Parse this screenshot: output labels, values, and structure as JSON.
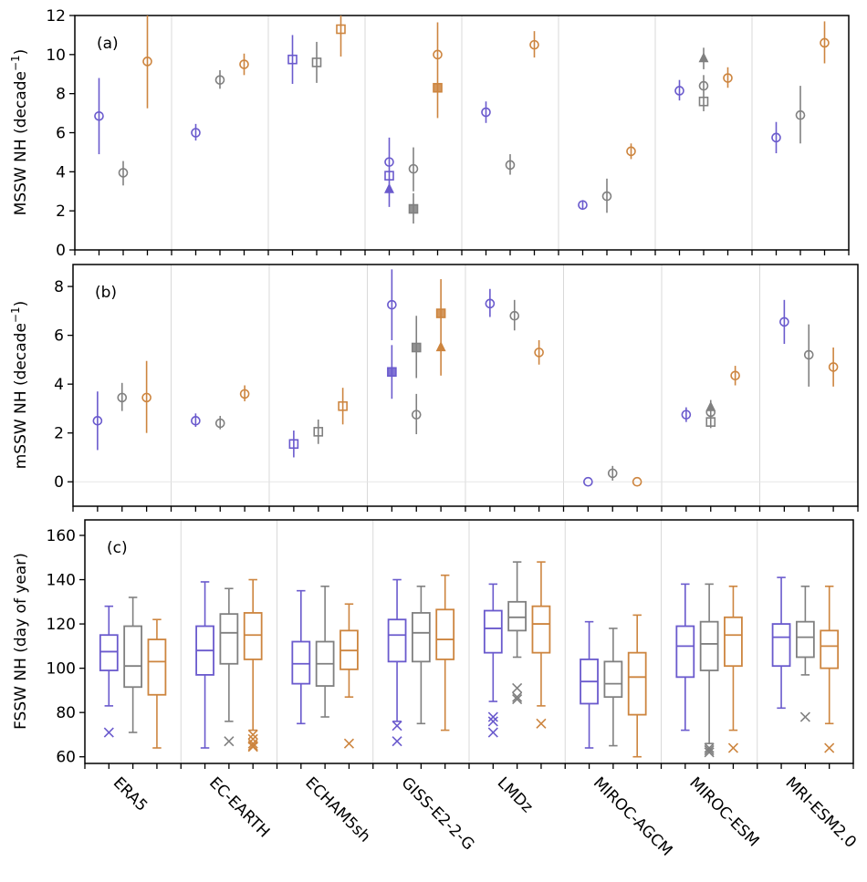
{
  "colors": {
    "series_1": "#6a5acd",
    "series_2": "#808080",
    "series_3": "#cd853f",
    "grid": "#d9d9d9",
    "axis": "#000000"
  },
  "chart_data": [
    {
      "id": "a",
      "type": "scatter",
      "panel_label": "(a)",
      "ylabel": "MSSW NH (decade",
      "ylabel_sup": "−1",
      "ylabel_close": ")",
      "ylim": [
        0,
        12
      ],
      "yticks": [
        0,
        2,
        4,
        6,
        8,
        10,
        12
      ],
      "categories": [
        "ERA5",
        "EC-EARTH",
        "ECHAM5sh",
        "GISS-E2-2-G",
        "LMDz",
        "MIROC-AGCM",
        "MIROC-ESM",
        "MRI-ESM2.0"
      ],
      "grid": "vertical group separators",
      "points": [
        {
          "group": 0,
          "series": 0,
          "marker": "circle",
          "y": 6.85,
          "lo": 4.9,
          "hi": 8.8
        },
        {
          "group": 0,
          "series": 1,
          "marker": "circle",
          "y": 3.95,
          "lo": 3.3,
          "hi": 4.55
        },
        {
          "group": 0,
          "series": 2,
          "marker": "circle",
          "y": 9.65,
          "lo": 7.25,
          "hi": 12.0
        },
        {
          "group": 1,
          "series": 0,
          "marker": "circle",
          "y": 6.0,
          "lo": 5.6,
          "hi": 6.45
        },
        {
          "group": 1,
          "series": 1,
          "marker": "circle",
          "y": 8.7,
          "lo": 8.25,
          "hi": 9.2
        },
        {
          "group": 1,
          "series": 2,
          "marker": "circle",
          "y": 9.5,
          "lo": 8.95,
          "hi": 10.05
        },
        {
          "group": 2,
          "series": 0,
          "marker": "square",
          "y": 9.75,
          "lo": 8.5,
          "hi": 11.0
        },
        {
          "group": 2,
          "series": 1,
          "marker": "square",
          "y": 9.6,
          "lo": 8.55,
          "hi": 10.65
        },
        {
          "group": 2,
          "series": 2,
          "marker": "square",
          "y": 11.3,
          "lo": 9.9,
          "hi": 12.0
        },
        {
          "group": 3,
          "series": 0,
          "marker": "circle",
          "y": 4.5,
          "lo": 2.2,
          "hi": 5.75
        },
        {
          "group": 3,
          "series": 0,
          "marker": "square",
          "y": 3.8,
          "lo": null,
          "hi": null
        },
        {
          "group": 3,
          "series": 0,
          "marker": "triangle",
          "y": 3.1,
          "lo": null,
          "hi": null
        },
        {
          "group": 3,
          "series": 1,
          "marker": "circle",
          "y": 4.15,
          "lo": 3.0,
          "hi": 5.25
        },
        {
          "group": 3,
          "series": 1,
          "marker": "square-filled",
          "y": 2.1,
          "lo": 1.35,
          "hi": 2.9
        },
        {
          "group": 3,
          "series": 2,
          "marker": "circle",
          "y": 10.0,
          "lo": 6.75,
          "hi": 11.65
        },
        {
          "group": 3,
          "series": 2,
          "marker": "square-filled",
          "y": 8.3,
          "lo": null,
          "hi": null
        },
        {
          "group": 4,
          "series": 0,
          "marker": "circle",
          "y": 7.05,
          "lo": 6.5,
          "hi": 7.6
        },
        {
          "group": 4,
          "series": 1,
          "marker": "circle",
          "y": 4.35,
          "lo": 3.85,
          "hi": 4.9
        },
        {
          "group": 4,
          "series": 2,
          "marker": "circle",
          "y": 10.5,
          "lo": 9.85,
          "hi": 11.2
        },
        {
          "group": 5,
          "series": 0,
          "marker": "circle",
          "y": 2.3,
          "lo": 2.05,
          "hi": 2.55
        },
        {
          "group": 5,
          "series": 1,
          "marker": "circle",
          "y": 2.75,
          "lo": 1.9,
          "hi": 3.65
        },
        {
          "group": 5,
          "series": 2,
          "marker": "circle",
          "y": 5.05,
          "lo": 4.65,
          "hi": 5.45
        },
        {
          "group": 6,
          "series": 0,
          "marker": "circle",
          "y": 8.15,
          "lo": 7.65,
          "hi": 8.7
        },
        {
          "group": 6,
          "series": 1,
          "marker": "triangle-filled",
          "y": 9.8,
          "lo": 9.25,
          "hi": 10.35
        },
        {
          "group": 6,
          "series": 1,
          "marker": "circle",
          "y": 8.4,
          "lo": 7.1,
          "hi": 8.95
        },
        {
          "group": 6,
          "series": 1,
          "marker": "square",
          "y": 7.6,
          "lo": null,
          "hi": null
        },
        {
          "group": 6,
          "series": 2,
          "marker": "circle",
          "y": 8.8,
          "lo": 8.3,
          "hi": 9.35
        },
        {
          "group": 7,
          "series": 0,
          "marker": "circle",
          "y": 5.75,
          "lo": 4.95,
          "hi": 6.55
        },
        {
          "group": 7,
          "series": 1,
          "marker": "circle",
          "y": 6.9,
          "lo": 5.45,
          "hi": 8.4
        },
        {
          "group": 7,
          "series": 2,
          "marker": "circle",
          "y": 10.6,
          "lo": 9.55,
          "hi": 11.7
        }
      ]
    },
    {
      "id": "b",
      "type": "scatter",
      "panel_label": "(b)",
      "ylabel": "mSSW NH (decade",
      "ylabel_sup": "−1",
      "ylabel_close": ")",
      "ylim": [
        -1,
        8.9
      ],
      "yticks": [
        0,
        2,
        4,
        6,
        8
      ],
      "categories": [
        "ERA5",
        "EC-EARTH",
        "ECHAM5sh",
        "GISS-E2-2-G",
        "LMDz",
        "MIROC-AGCM",
        "MIROC-ESM",
        "MRI-ESM2.0"
      ],
      "grid": "vertical group separators and horizontal line at 0",
      "points": [
        {
          "group": 0,
          "series": 0,
          "marker": "circle",
          "y": 2.5,
          "lo": 1.3,
          "hi": 3.7
        },
        {
          "group": 0,
          "series": 1,
          "marker": "circle",
          "y": 3.45,
          "lo": 2.9,
          "hi": 4.05
        },
        {
          "group": 0,
          "series": 2,
          "marker": "circle",
          "y": 3.45,
          "lo": 2.0,
          "hi": 4.95
        },
        {
          "group": 1,
          "series": 0,
          "marker": "circle",
          "y": 2.5,
          "lo": 2.25,
          "hi": 2.8
        },
        {
          "group": 1,
          "series": 1,
          "marker": "circle",
          "y": 2.4,
          "lo": 2.15,
          "hi": 2.7
        },
        {
          "group": 1,
          "series": 2,
          "marker": "circle",
          "y": 3.6,
          "lo": 3.3,
          "hi": 3.95
        },
        {
          "group": 2,
          "series": 0,
          "marker": "square",
          "y": 1.55,
          "lo": 1.0,
          "hi": 2.1
        },
        {
          "group": 2,
          "series": 1,
          "marker": "square",
          "y": 2.05,
          "lo": 1.55,
          "hi": 2.55
        },
        {
          "group": 2,
          "series": 2,
          "marker": "square",
          "y": 3.1,
          "lo": 2.35,
          "hi": 3.85
        },
        {
          "group": 3,
          "series": 0,
          "marker": "circle",
          "y": 7.25,
          "lo": 5.8,
          "hi": 8.7
        },
        {
          "group": 3,
          "series": 0,
          "marker": "square-filled",
          "y": 4.5,
          "lo": 3.4,
          "hi": 5.6
        },
        {
          "group": 3,
          "series": 1,
          "marker": "square-filled",
          "y": 5.5,
          "lo": 4.25,
          "hi": 6.8
        },
        {
          "group": 3,
          "series": 1,
          "marker": "circle",
          "y": 2.75,
          "lo": 1.95,
          "hi": 3.6
        },
        {
          "group": 3,
          "series": 2,
          "marker": "square-filled",
          "y": 6.9,
          "lo": 4.35,
          "hi": 8.3
        },
        {
          "group": 3,
          "series": 2,
          "marker": "triangle-filled",
          "y": 5.5,
          "lo": null,
          "hi": null
        },
        {
          "group": 4,
          "series": 0,
          "marker": "circle",
          "y": 7.3,
          "lo": 6.75,
          "hi": 7.9
        },
        {
          "group": 4,
          "series": 1,
          "marker": "circle",
          "y": 6.8,
          "lo": 6.2,
          "hi": 7.45
        },
        {
          "group": 4,
          "series": 2,
          "marker": "circle",
          "y": 5.3,
          "lo": 4.8,
          "hi": 5.8
        },
        {
          "group": 5,
          "series": 0,
          "marker": "circle",
          "y": 0.0,
          "lo": null,
          "hi": null
        },
        {
          "group": 5,
          "series": 1,
          "marker": "circle",
          "y": 0.35,
          "lo": 0.05,
          "hi": 0.65
        },
        {
          "group": 5,
          "series": 2,
          "marker": "circle",
          "y": 0.0,
          "lo": null,
          "hi": null
        },
        {
          "group": 6,
          "series": 0,
          "marker": "circle",
          "y": 2.75,
          "lo": 2.45,
          "hi": 3.05
        },
        {
          "group": 6,
          "series": 1,
          "marker": "triangle-filled",
          "y": 3.05,
          "lo": null,
          "hi": null
        },
        {
          "group": 6,
          "series": 1,
          "marker": "circle",
          "y": 2.85,
          "lo": 2.2,
          "hi": 3.35
        },
        {
          "group": 6,
          "series": 1,
          "marker": "square",
          "y": 2.45,
          "lo": null,
          "hi": null
        },
        {
          "group": 6,
          "series": 2,
          "marker": "circle",
          "y": 4.35,
          "lo": 3.95,
          "hi": 4.75
        },
        {
          "group": 7,
          "series": 0,
          "marker": "circle",
          "y": 6.55,
          "lo": 5.65,
          "hi": 7.45
        },
        {
          "group": 7,
          "series": 1,
          "marker": "circle",
          "y": 5.2,
          "lo": 3.9,
          "hi": 6.45
        },
        {
          "group": 7,
          "series": 2,
          "marker": "circle",
          "y": 4.7,
          "lo": 3.9,
          "hi": 5.5
        }
      ]
    },
    {
      "id": "c",
      "type": "box",
      "panel_label": "(c)",
      "ylabel": "FSSW NH (day of year)",
      "ylim": [
        57,
        167
      ],
      "yticks": [
        60,
        80,
        100,
        120,
        140,
        160
      ],
      "categories": [
        "ERA5",
        "EC-EARTH",
        "ECHAM5sh",
        "GISS-E2-2-G",
        "LMDz",
        "MIROC-AGCM",
        "MIROC-ESM",
        "MRI-ESM2.0"
      ],
      "grid": "vertical group separators",
      "boxes": [
        {
          "group": 0,
          "series": 0,
          "wlo": 83,
          "q1": 99,
          "med": 107.5,
          "q3": 115,
          "whi": 128,
          "outliers": [
            71
          ]
        },
        {
          "group": 0,
          "series": 1,
          "wlo": 71,
          "q1": 91.5,
          "med": 101,
          "q3": 119,
          "whi": 132,
          "outliers": []
        },
        {
          "group": 0,
          "series": 2,
          "wlo": 64,
          "q1": 88,
          "med": 103,
          "q3": 113,
          "whi": 122,
          "outliers": []
        },
        {
          "group": 1,
          "series": 0,
          "wlo": 64,
          "q1": 97,
          "med": 108,
          "q3": 119,
          "whi": 139,
          "outliers": []
        },
        {
          "group": 1,
          "series": 1,
          "wlo": 76,
          "q1": 102,
          "med": 116,
          "q3": 124.5,
          "whi": 136,
          "outliers": [
            67
          ]
        },
        {
          "group": 1,
          "series": 2,
          "wlo": 72,
          "q1": 104,
          "med": 115,
          "q3": 125,
          "whi": 140,
          "outliers": [
            70,
            68,
            66,
            65,
            64.5
          ]
        },
        {
          "group": 2,
          "series": 0,
          "wlo": 75,
          "q1": 93,
          "med": 102,
          "q3": 112,
          "whi": 135,
          "outliers": []
        },
        {
          "group": 2,
          "series": 1,
          "wlo": 78,
          "q1": 92,
          "med": 102,
          "q3": 112,
          "whi": 137,
          "outliers": []
        },
        {
          "group": 2,
          "series": 2,
          "wlo": 87,
          "q1": 99.5,
          "med": 108,
          "q3": 117,
          "whi": 129,
          "outliers": [
            66
          ]
        },
        {
          "group": 3,
          "series": 0,
          "wlo": 76,
          "q1": 103,
          "med": 115,
          "q3": 122,
          "whi": 140,
          "outliers": [
            74,
            67
          ]
        },
        {
          "group": 3,
          "series": 1,
          "wlo": 75,
          "q1": 103,
          "med": 116,
          "q3": 125,
          "whi": 137,
          "outliers": []
        },
        {
          "group": 3,
          "series": 2,
          "wlo": 72,
          "q1": 104,
          "med": 113,
          "q3": 126.5,
          "whi": 142,
          "outliers": []
        },
        {
          "group": 4,
          "series": 0,
          "wlo": 85,
          "q1": 107,
          "med": 118,
          "q3": 126,
          "whi": 138,
          "outliers": [
            78,
            76,
            71
          ]
        },
        {
          "group": 4,
          "series": 1,
          "wlo": 105,
          "q1": 117,
          "med": 123,
          "q3": 130,
          "whi": 148,
          "outliers": [
            91,
            87,
            86
          ]
        },
        {
          "group": 4,
          "series": 2,
          "wlo": 83,
          "q1": 107,
          "med": 120,
          "q3": 128,
          "whi": 148,
          "outliers": [
            75
          ]
        },
        {
          "group": 5,
          "series": 0,
          "wlo": 64,
          "q1": 84,
          "med": 94,
          "q3": 104,
          "whi": 121,
          "outliers": []
        },
        {
          "group": 5,
          "series": 1,
          "wlo": 65,
          "q1": 87,
          "med": 93,
          "q3": 103,
          "whi": 118,
          "outliers": []
        },
        {
          "group": 5,
          "series": 2,
          "wlo": 60,
          "q1": 79,
          "med": 96,
          "q3": 107,
          "whi": 124,
          "outliers": []
        },
        {
          "group": 6,
          "series": 0,
          "wlo": 72,
          "q1": 96,
          "med": 110,
          "q3": 119,
          "whi": 138,
          "outliers": []
        },
        {
          "group": 6,
          "series": 1,
          "wlo": 66,
          "q1": 99,
          "med": 111,
          "q3": 121,
          "whi": 138,
          "outliers": [
            64,
            63,
            62
          ]
        },
        {
          "group": 6,
          "series": 2,
          "wlo": 72,
          "q1": 101,
          "med": 115,
          "q3": 123,
          "whi": 137,
          "outliers": [
            64
          ]
        },
        {
          "group": 7,
          "series": 0,
          "wlo": 82,
          "q1": 101,
          "med": 114,
          "q3": 120,
          "whi": 141,
          "outliers": []
        },
        {
          "group": 7,
          "series": 1,
          "wlo": 97,
          "q1": 105,
          "med": 114,
          "q3": 121,
          "whi": 137,
          "outliers": [
            78
          ]
        },
        {
          "group": 7,
          "series": 2,
          "wlo": 75,
          "q1": 100,
          "med": 110,
          "q3": 117,
          "whi": 137,
          "outliers": [
            64
          ]
        }
      ]
    }
  ]
}
